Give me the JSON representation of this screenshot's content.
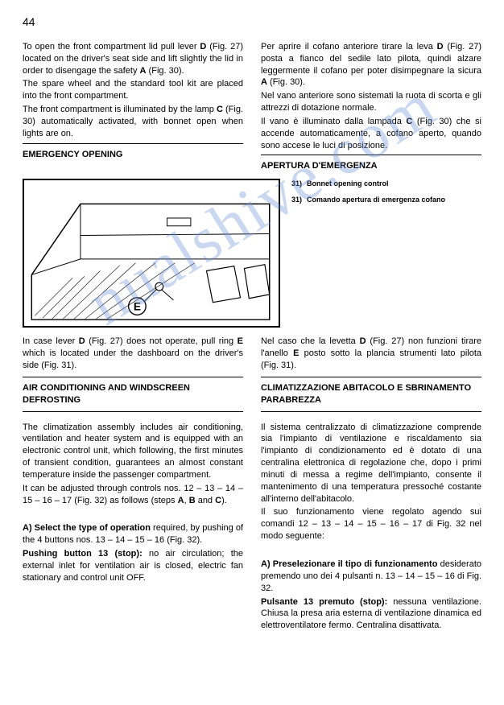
{
  "page_number": "44",
  "left": {
    "p1": "To open the front compartment lid pull lever <b>D</b> (Fig. 27) located on the driver's seat side and lift slightly the lid in order to disengage the safety <b>A</b> (Fig. 30).",
    "p2": "The spare wheel and the standard tool kit are placed into the front compartment.",
    "p3": "The front compartment is illuminated by the lamp <b>C</b> (Fig. 30) automatically activated, with bonnet open when lights are on.",
    "h1": "EMERGENCY OPENING",
    "p4": "In case lever <b>D</b> (Fig. 27) does not operate, pull ring <b>E</b> which is located under the dashboard on the driver's side (Fig. 31).",
    "h2": "AIR CONDITIONING AND WINDSCREEN DEFROSTING",
    "p5": "The climatization assembly includes air conditioning, ventilation and heater system and is equipped with an electronic control unit, which following, the first minutes of transient condition, guarantees an almost constant temperature inside the passenger compartment.",
    "p6": "It can be adjusted through controls nos. 12 – 13 – 14 – 15 – 16 – 17 (Fig. 32) as follows (steps <b>A</b>, <b>B</b> and <b>C</b>).",
    "p7": "<b>A) Select the type of operation</b> required, by pushing of the 4 buttons nos. 13 – 14 – 15 – 16 (Fig. 32).",
    "p8": "<b>Pushing button 13 (stop):</b> no air circulation; the external inlet for ventilation air is closed, electric fan stationary and control unit OFF."
  },
  "right": {
    "p1": "Per aprire il cofano anteriore tirare la leva <b>D</b> (Fig. 27) posta a fianco del sedile lato pilota, quindi alzare leggermente il cofano per poter disimpegnare la sicura <b>A</b> (Fig. 30).",
    "p2": "Nel vano anteriore sono sistemati la ruota di scorta e gli attrezzi di dotazione normale.",
    "p3": "Il vano è illuminato dalla lampada <b>C</b> (Fig. 30) che si accende automaticamente, a cofano aperto, quando sono accese le luci di posizione.",
    "h1": "APERTURA D'EMERGENZA",
    "p4": "Nel caso che la levetta <b>D</b> (Fig. 27) non funzioni tirare l'anello <b>E</b> posto sotto la plancia strumenti lato pilota (Fig. 31).",
    "h2": "CLIMATIZZAZIONE ABITACOLO E SBRINAMENTO PARABREZZA",
    "p5": "Il sistema centralizzato di climatizzazione comprende sia l'impianto di ventilazione e riscaldamento sia l'impianto di condizionamento ed è dotato di una centralina elettronica di regolazione che, dopo i primi minuti di messa a regime dell'impianto, consente il mantenimento di una temperatura pressoché costante all'interno dell'abitacolo.",
    "p6": "Il suo funzionamento viene regolato agendo sui comandi 12 – 13 – 14 – 15 – 16 – 17 di Fig. 32 nel modo seguente:",
    "p7": "<b>A) Preselezionare il tipo di funzionamento</b> desiderato premendo uno dei 4 pulsanti n. 13 – 14 – 15 – 16 di Fig. 32.",
    "p8": "<b>Pulsante 13 premuto (stop):</b> nessuna ventilazione. Chiusa la presa aria esterna di ventilazione dinamica ed elettroventilatore fermo. Centralina disattivata."
  },
  "legend": {
    "num": "31)",
    "en": "Bonnet opening control",
    "it": "Comando apertura di emergenza cofano"
  },
  "watermark_text": "nualshive.com",
  "figure": {
    "label": "E",
    "border_color": "#000000"
  }
}
